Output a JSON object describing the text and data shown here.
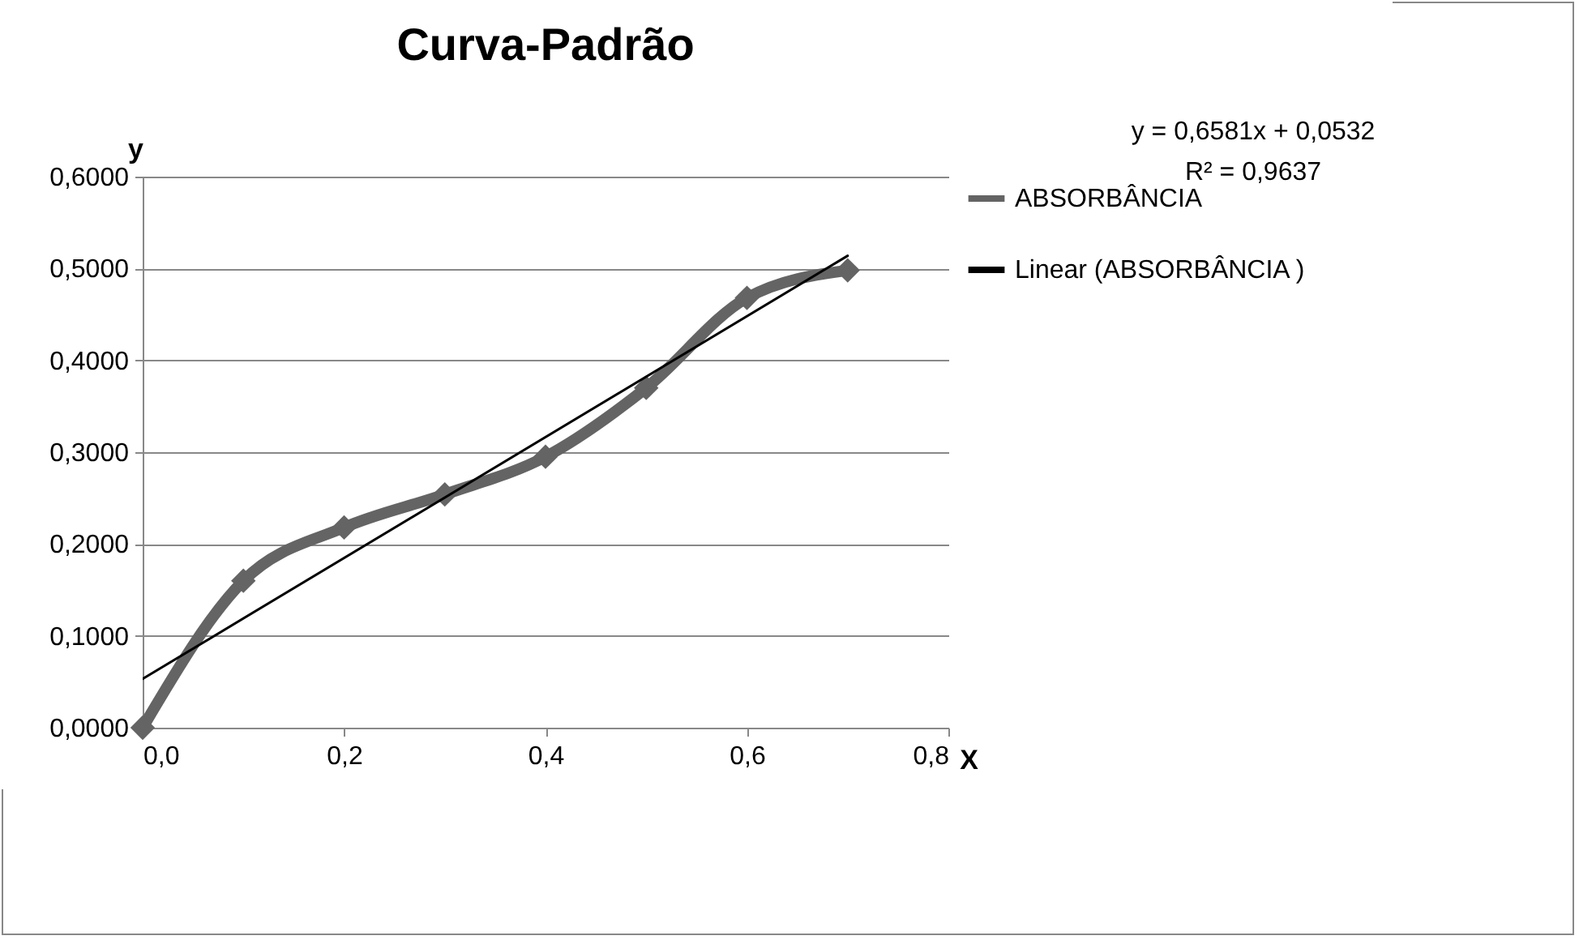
{
  "chart_data": {
    "type": "line",
    "title": "Curva-Padrão",
    "xlabel": "X",
    "ylabel": "y",
    "x": [
      0,
      0.1,
      0.2,
      0.3,
      0.4,
      0.5,
      0.6,
      0.7
    ],
    "series": [
      {
        "name": "ABSORBÂNCIA",
        "color": "#646464",
        "marker": "diamond",
        "values": [
          0,
          0.16,
          0.218,
          0.254,
          0.295,
          0.37,
          0.468,
          0.498
        ]
      },
      {
        "name": "Linear (ABSORBÂNCIA )",
        "type": "line",
        "color": "#000000",
        "marker": "none",
        "x": [
          0,
          0.7
        ],
        "values": [
          0.0532,
          0.51387
        ]
      }
    ],
    "xlim": [
      0,
      0.8
    ],
    "xticks": [
      {
        "value": 0,
        "label": "0,0"
      },
      {
        "value": 0.2,
        "label": "0,2"
      },
      {
        "value": 0.4,
        "label": "0,4"
      },
      {
        "value": 0.6,
        "label": "0,6"
      },
      {
        "value": 0.8,
        "label": "0,8"
      }
    ],
    "ylim": [
      0,
      0.6
    ],
    "yticks": [
      {
        "value": 0,
        "label": "0,0000"
      },
      {
        "value": 0.1,
        "label": "0,1000"
      },
      {
        "value": 0.2,
        "label": "0,2000"
      },
      {
        "value": 0.3,
        "label": "0,3000"
      },
      {
        "value": 0.4,
        "label": "0,4000"
      },
      {
        "value": 0.5,
        "label": "0,5000"
      },
      {
        "value": 0.6,
        "label": "0,6000"
      }
    ],
    "grid": "y",
    "legend": "right",
    "annotations": [
      "y = 0,6581x + 0,0532",
      "R² = 0,9637"
    ]
  }
}
